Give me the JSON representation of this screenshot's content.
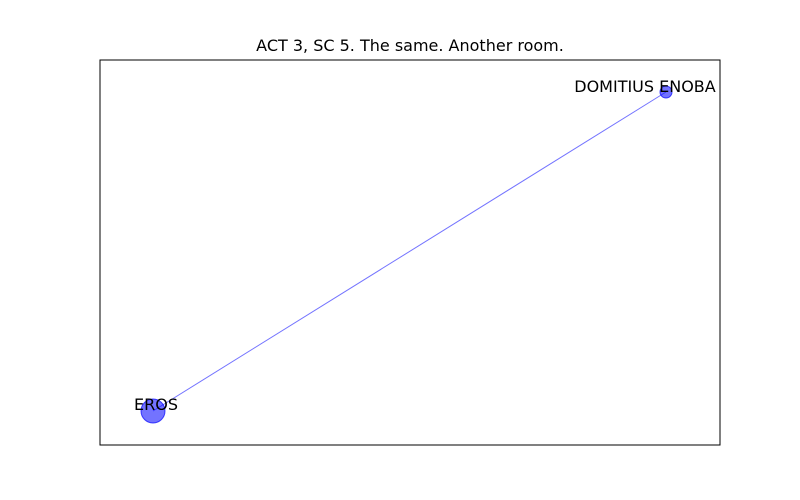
{
  "title": "ACT 3, SC 5. The same. Another room.",
  "colors": {
    "node": "#0000ff",
    "edge": "#0000ff",
    "frame": "#000000",
    "text": "#000000"
  },
  "graph": {
    "nodes": [
      {
        "id": "eros",
        "label": "EROS",
        "weight": 2
      },
      {
        "id": "domitius",
        "label": "DOMITIUS ENOBA",
        "weight": 1
      }
    ],
    "edges": [
      {
        "source": "eros",
        "target": "domitius"
      }
    ]
  }
}
